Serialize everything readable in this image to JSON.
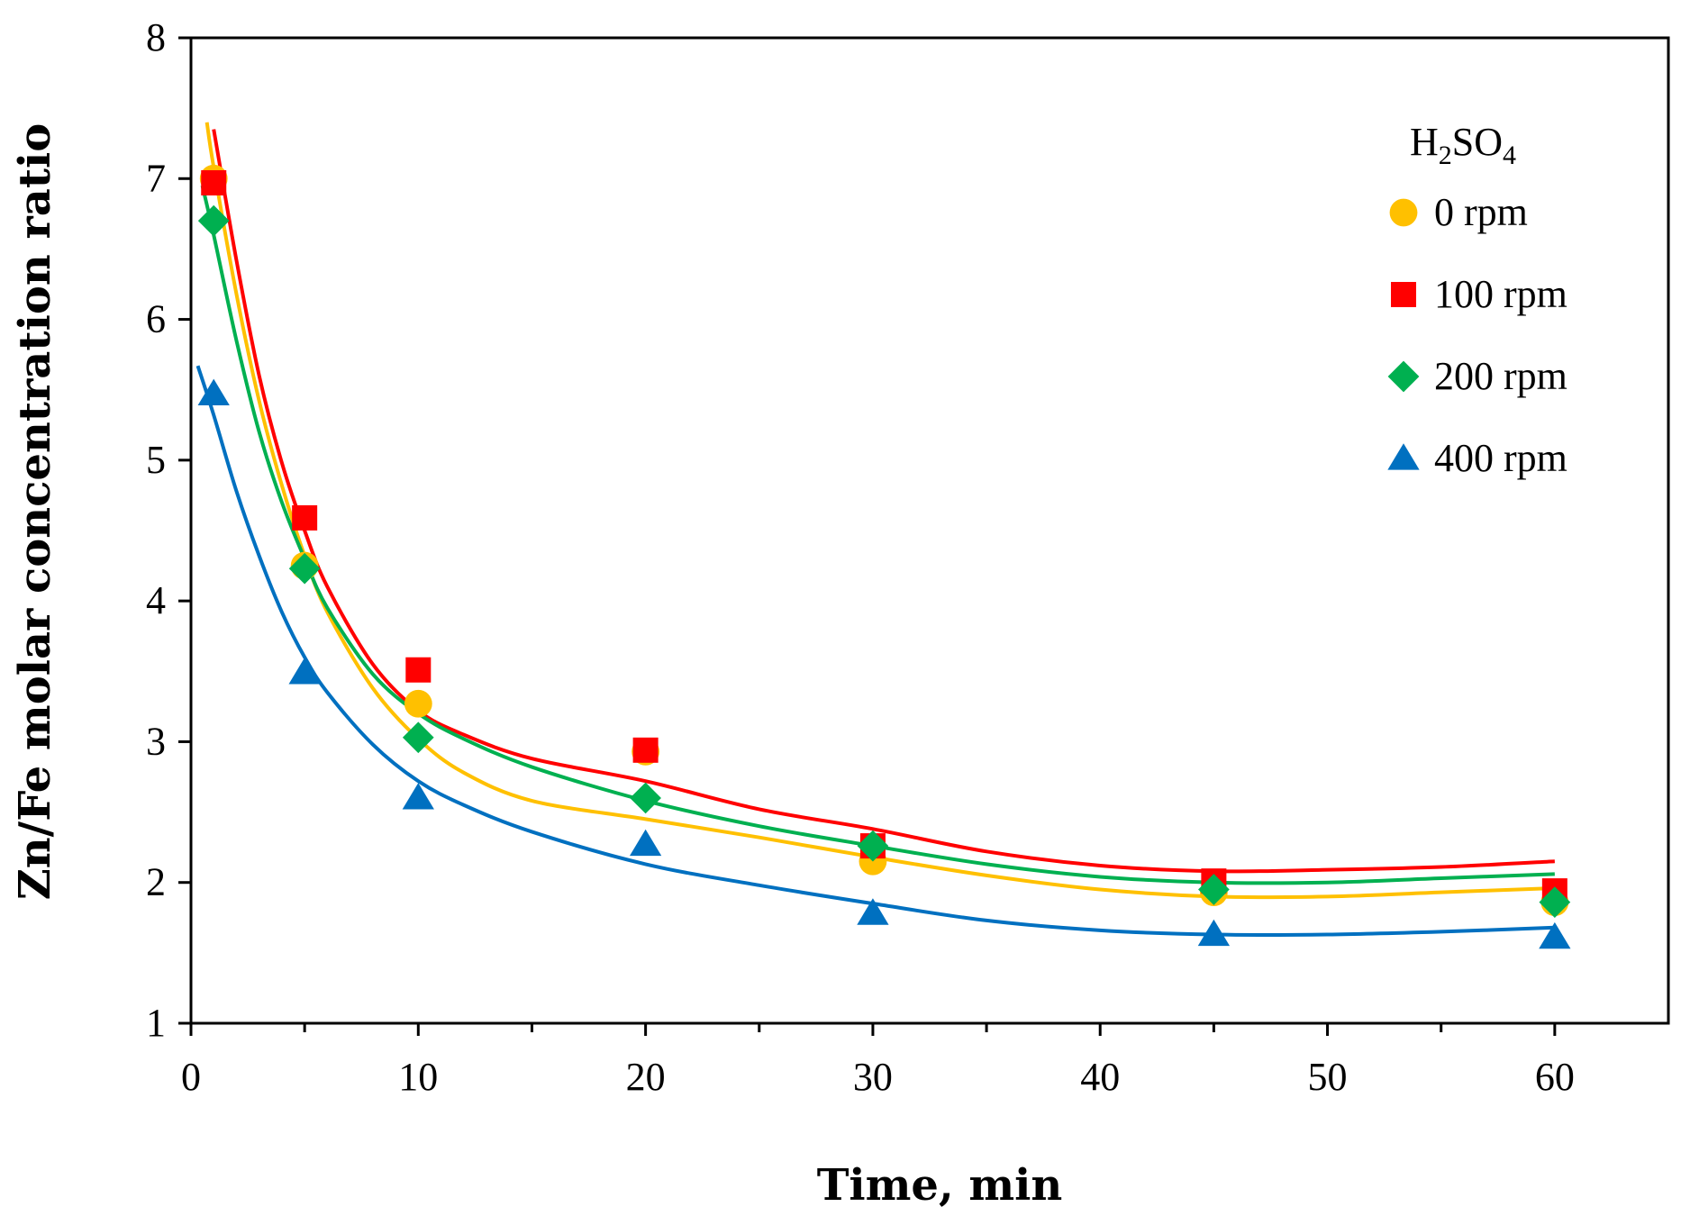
{
  "chart_data": {
    "type": "scatter",
    "title": "",
    "xlabel": "Time, min",
    "ylabel": "Zn/Fe molar concentration  ratio",
    "xlim": [
      0,
      65
    ],
    "ylim": [
      1,
      8
    ],
    "x_ticks": [
      0,
      10,
      20,
      30,
      40,
      50,
      60
    ],
    "y_ticks": [
      1,
      2,
      3,
      4,
      5,
      6,
      7,
      8
    ],
    "grid": false,
    "legend": {
      "title_main": "H",
      "title_sub1": "2",
      "title_mid": "SO",
      "title_sub2": "4",
      "position": "top-right"
    },
    "series": [
      {
        "name": "0 rpm",
        "color": "#FFC000",
        "marker": "circle",
        "x": [
          1,
          5,
          10,
          20,
          30,
          45,
          60
        ],
        "y": [
          7.0,
          4.25,
          3.27,
          2.93,
          2.15,
          1.93,
          1.86
        ],
        "trendline": {
          "x": [
            0.7,
            1,
            2,
            3,
            4,
            5,
            6,
            8,
            10,
            12,
            15,
            20,
            25,
            30,
            35,
            40,
            45,
            50,
            55,
            60
          ],
          "y": [
            7.4,
            7.08,
            6.18,
            5.42,
            4.82,
            4.32,
            3.92,
            3.38,
            3.02,
            2.78,
            2.58,
            2.45,
            2.32,
            2.18,
            2.05,
            1.95,
            1.9,
            1.9,
            1.93,
            1.96
          ]
        }
      },
      {
        "name": "100 rpm",
        "color": "#FF0000",
        "marker": "square",
        "x": [
          1,
          5,
          10,
          20,
          30,
          45,
          60
        ],
        "y": [
          6.97,
          4.59,
          3.51,
          2.94,
          2.26,
          2.01,
          1.94
        ],
        "trendline": {
          "x": [
            1,
            2,
            3,
            4,
            5,
            6,
            8,
            10,
            12,
            15,
            20,
            25,
            30,
            35,
            40,
            45,
            50,
            55,
            60
          ],
          "y": [
            7.35,
            6.42,
            5.6,
            4.98,
            4.5,
            4.1,
            3.55,
            3.22,
            3.05,
            2.88,
            2.72,
            2.52,
            2.38,
            2.22,
            2.12,
            2.08,
            2.09,
            2.11,
            2.15
          ]
        }
      },
      {
        "name": "200 rpm",
        "color": "#00B050",
        "marker": "diamond",
        "x": [
          1,
          5,
          10,
          20,
          30,
          45,
          60
        ],
        "y": [
          6.7,
          4.23,
          3.03,
          2.6,
          2.26,
          1.95,
          1.86
        ],
        "trendline": {
          "x": [
            0.5,
            1,
            2,
            3,
            4,
            5,
            6,
            8,
            10,
            12,
            15,
            20,
            25,
            30,
            35,
            40,
            45,
            50,
            55,
            60
          ],
          "y": [
            6.95,
            6.6,
            5.85,
            5.2,
            4.7,
            4.3,
            3.95,
            3.48,
            3.2,
            3.02,
            2.82,
            2.58,
            2.4,
            2.26,
            2.13,
            2.04,
            2.0,
            2.0,
            2.03,
            2.06
          ]
        }
      },
      {
        "name": "400 rpm",
        "color": "#0070C0",
        "marker": "triangle",
        "x": [
          1,
          5,
          10,
          20,
          30,
          45,
          60
        ],
        "y": [
          5.47,
          3.49,
          2.6,
          2.27,
          1.78,
          1.63,
          1.61
        ],
        "trendline": {
          "x": [
            0.3,
            1,
            2,
            3,
            4,
            5,
            6,
            8,
            10,
            12,
            15,
            20,
            25,
            30,
            35,
            40,
            45,
            50,
            55,
            60
          ],
          "y": [
            5.67,
            5.32,
            4.78,
            4.32,
            3.92,
            3.6,
            3.35,
            2.98,
            2.72,
            2.55,
            2.36,
            2.13,
            1.98,
            1.85,
            1.73,
            1.66,
            1.63,
            1.63,
            1.65,
            1.68
          ]
        }
      }
    ]
  }
}
